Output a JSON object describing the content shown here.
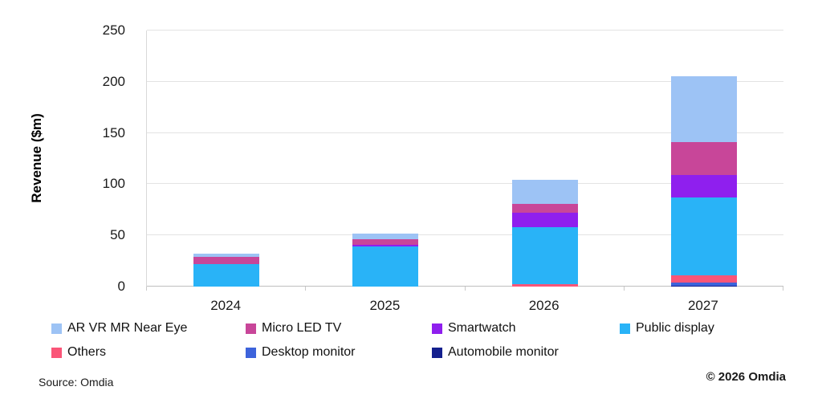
{
  "footer": {
    "source": "Source: Omdia",
    "copyright": "© 2026 Omdia"
  },
  "chart_data": {
    "type": "bar",
    "stacked": true,
    "title": "",
    "ylabel": "Revenue ($m)",
    "xlabel": "",
    "categories": [
      "2024",
      "2025",
      "2026",
      "2027"
    ],
    "ylim": [
      0,
      250
    ],
    "yticks": [
      0,
      50,
      100,
      150,
      200,
      250
    ],
    "grid": "horizontal",
    "legend_position": "bottom-two-rows",
    "series": [
      {
        "name": "AR VR MR Near Eye",
        "color": "#9DC3F5",
        "values": [
          3,
          6,
          23,
          64
        ]
      },
      {
        "name": "Micro LED TV",
        "color": "#C84699",
        "values": [
          7,
          5,
          9,
          32
        ]
      },
      {
        "name": "Smartwatch",
        "color": "#8F1FEE",
        "values": [
          0,
          2,
          14,
          22
        ]
      },
      {
        "name": "Public display",
        "color": "#29B3F7",
        "values": [
          22,
          39,
          56,
          76
        ]
      },
      {
        "name": "Others",
        "color": "#FA5578",
        "values": [
          0,
          0,
          2,
          7
        ]
      },
      {
        "name": "Desktop monitor",
        "color": "#3D63DB",
        "values": [
          0,
          0,
          0,
          3
        ]
      },
      {
        "name": "Automobile monitor",
        "color": "#14208E",
        "values": [
          0,
          0,
          0,
          1
        ]
      }
    ],
    "totals": [
      32,
      52,
      104,
      205
    ]
  }
}
